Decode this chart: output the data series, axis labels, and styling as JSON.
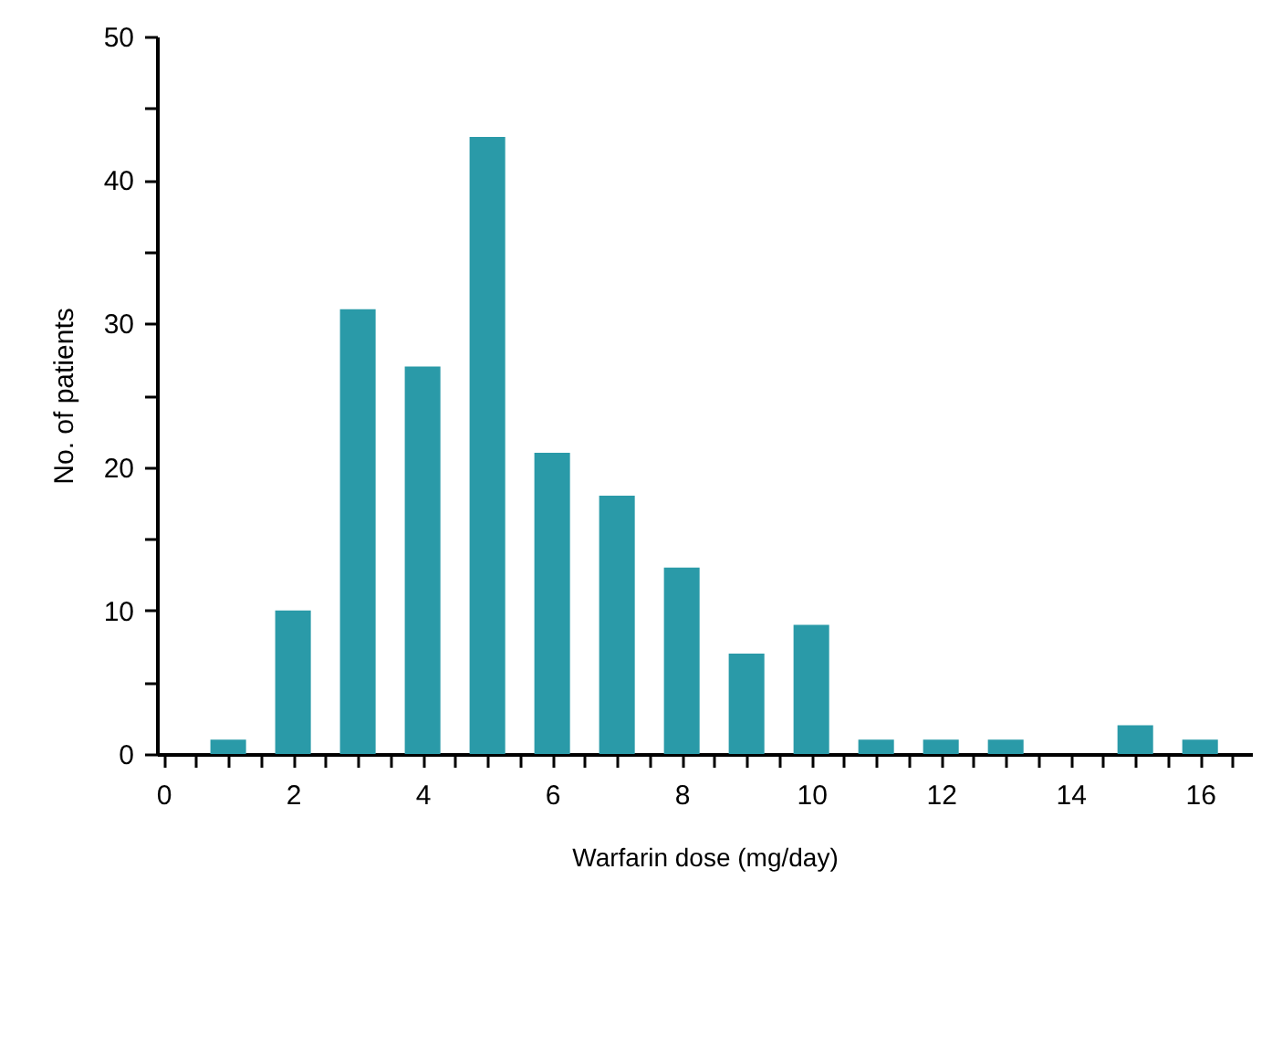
{
  "chart_data": {
    "type": "bar",
    "xlabel": "Warfarin dose (mg/day)",
    "ylabel": "No. of patients",
    "x": [
      1,
      2,
      3,
      4,
      5,
      6,
      7,
      8,
      9,
      10,
      11,
      12,
      13,
      15,
      16
    ],
    "values": [
      1,
      10,
      31,
      27,
      43,
      21,
      18,
      13,
      7,
      9,
      1,
      1,
      1,
      2,
      1
    ],
    "color": "#2a9aa8",
    "xlim": [
      -0.1,
      16.8
    ],
    "xticks": [
      0,
      {
        "value": 0.5,
        "label": null
      },
      {
        "value": 1,
        "label": null
      },
      {
        "value": 1.5,
        "label": null
      },
      2,
      {
        "value": 2.5,
        "label": null
      },
      {
        "value": 3,
        "label": null
      },
      {
        "value": 3.5,
        "label": null
      },
      4,
      {
        "value": 4.5,
        "label": null
      },
      {
        "value": 5,
        "label": null
      },
      {
        "value": 5.5,
        "label": null
      },
      6,
      {
        "value": 6.5,
        "label": null
      },
      {
        "value": 7,
        "label": null
      },
      {
        "value": 7.5,
        "label": null
      },
      8,
      {
        "value": 8.5,
        "label": null
      },
      {
        "value": 9,
        "label": null
      },
      {
        "value": 9.5,
        "label": null
      },
      10,
      {
        "value": 10.5,
        "label": null
      },
      {
        "value": 11,
        "label": null
      },
      {
        "value": 11.5,
        "label": null
      },
      12,
      {
        "value": 12.5,
        "label": null
      },
      {
        "value": 13,
        "label": null
      },
      {
        "value": 13.5,
        "label": null
      },
      14,
      {
        "value": 14.5,
        "label": null
      },
      {
        "value": 15,
        "label": null
      },
      {
        "value": 15.5,
        "label": null
      },
      16,
      {
        "value": 16.5,
        "label": null
      }
    ],
    "ylim": [
      0,
      50
    ],
    "yticks": [
      0,
      {
        "value": 5,
        "label": null
      },
      10,
      {
        "value": 15,
        "label": null
      },
      20,
      {
        "value": 25,
        "label": null
      },
      30,
      {
        "value": 35,
        "label": null
      },
      40,
      {
        "value": 45,
        "label": null
      },
      50
    ],
    "grid": false
  }
}
